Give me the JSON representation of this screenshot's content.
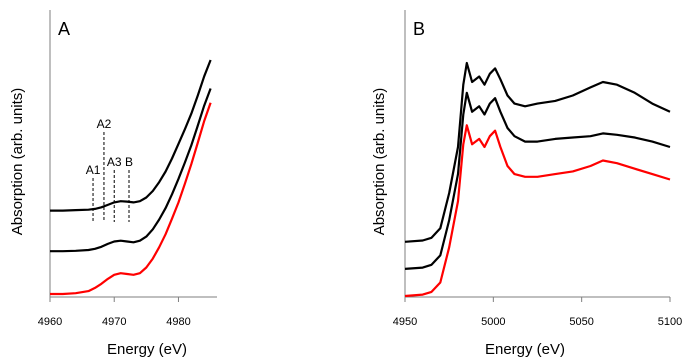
{
  "chart_data": [
    {
      "type": "line",
      "panel_label": "A",
      "xlabel": "Energy (eV)",
      "ylabel": "Absorption (arb. units)",
      "xlim": [
        4960,
        4986
      ],
      "xticks": [
        4960,
        4970,
        4980
      ],
      "grid": false,
      "y_ticks_shown": false,
      "stacked_offset": true,
      "series": [
        {
          "color": "#000000",
          "x": [
            4960,
            4962,
            4964,
            4966,
            4967,
            4968,
            4969,
            4970,
            4971,
            4972,
            4973,
            4974,
            4975,
            4976,
            4977,
            4978,
            4979,
            4980,
            4981,
            4982,
            4983,
            4984,
            4985
          ],
          "y": [
            2.1,
            2.1,
            2.11,
            2.12,
            2.14,
            2.18,
            2.24,
            2.3,
            2.33,
            2.32,
            2.3,
            2.33,
            2.42,
            2.58,
            2.8,
            3.06,
            3.38,
            3.74,
            4.1,
            4.48,
            4.92,
            5.4,
            5.8
          ]
        },
        {
          "color": "#000000",
          "x": [
            4960,
            4962,
            4964,
            4966,
            4967,
            4968,
            4969,
            4970,
            4971,
            4972,
            4973,
            4974,
            4975,
            4976,
            4977,
            4978,
            4979,
            4980,
            4981,
            4982,
            4983,
            4984,
            4985
          ],
          "y": [
            1.1,
            1.1,
            1.11,
            1.13,
            1.16,
            1.21,
            1.28,
            1.34,
            1.36,
            1.34,
            1.32,
            1.36,
            1.46,
            1.64,
            1.88,
            2.16,
            2.5,
            2.88,
            3.28,
            3.7,
            4.18,
            4.68,
            5.1
          ]
        },
        {
          "color": "#ff0000",
          "x": [
            4960,
            4962,
            4964,
            4966,
            4967,
            4968,
            4969,
            4970,
            4971,
            4972,
            4973,
            4974,
            4975,
            4976,
            4977,
            4978,
            4979,
            4980,
            4981,
            4982,
            4983,
            4984,
            4985
          ],
          "y": [
            0.05,
            0.05,
            0.07,
            0.12,
            0.2,
            0.3,
            0.42,
            0.52,
            0.56,
            0.54,
            0.52,
            0.56,
            0.7,
            0.92,
            1.2,
            1.52,
            1.9,
            2.3,
            2.76,
            3.24,
            3.76,
            4.3,
            4.75
          ]
        }
      ],
      "annotations": [
        {
          "label": "A1",
          "x": 4966.7
        },
        {
          "label": "A2",
          "x": 4968.4
        },
        {
          "label": "A3",
          "x": 4970.0
        },
        {
          "label": "B",
          "x": 4972.3
        }
      ]
    },
    {
      "type": "line",
      "panel_label": "B",
      "xlabel": "Energy (eV)",
      "ylabel": "Absorption (arb. units)",
      "xlim": [
        4950,
        5100
      ],
      "xticks": [
        4950,
        5000,
        5050,
        5100
      ],
      "grid": false,
      "y_ticks_shown": false,
      "stacked_offset": true,
      "series": [
        {
          "color": "#000000",
          "x": [
            4950,
            4960,
            4965,
            4970,
            4975,
            4980,
            4983,
            4985,
            4988,
            4992,
            4995,
            4998,
            5001,
            5004,
            5008,
            5012,
            5018,
            5025,
            5035,
            5045,
            5055,
            5062,
            5070,
            5080,
            5090,
            5100
          ],
          "y": [
            2.0,
            2.05,
            2.15,
            2.5,
            3.8,
            5.5,
            7.8,
            8.6,
            7.9,
            8.1,
            7.8,
            8.2,
            8.4,
            8.0,
            7.4,
            7.1,
            7.0,
            7.1,
            7.2,
            7.4,
            7.7,
            7.9,
            7.8,
            7.5,
            7.1,
            6.8
          ]
        },
        {
          "color": "#000000",
          "x": [
            4950,
            4960,
            4965,
            4970,
            4975,
            4980,
            4983,
            4985,
            4988,
            4992,
            4995,
            4998,
            5001,
            5004,
            5008,
            5012,
            5018,
            5025,
            5035,
            5045,
            5055,
            5062,
            5070,
            5080,
            5090,
            5100
          ],
          "y": [
            1.0,
            1.05,
            1.15,
            1.5,
            2.8,
            4.5,
            6.7,
            7.5,
            6.8,
            7.0,
            6.7,
            7.1,
            7.3,
            6.8,
            6.2,
            5.9,
            5.7,
            5.7,
            5.8,
            5.85,
            5.9,
            6.0,
            5.95,
            5.85,
            5.7,
            5.5
          ]
        },
        {
          "color": "#ff0000",
          "x": [
            4950,
            4960,
            4965,
            4970,
            4975,
            4980,
            4983,
            4985,
            4988,
            4992,
            4995,
            4998,
            5001,
            5004,
            5008,
            5012,
            5018,
            5025,
            5035,
            5045,
            5055,
            5062,
            5070,
            5080,
            5090,
            5100
          ],
          "y": [
            0.0,
            0.05,
            0.15,
            0.5,
            1.8,
            3.5,
            5.6,
            6.3,
            5.6,
            5.8,
            5.5,
            5.9,
            6.1,
            5.5,
            4.8,
            4.5,
            4.4,
            4.4,
            4.5,
            4.6,
            4.8,
            5.0,
            4.9,
            4.7,
            4.5,
            4.3
          ]
        }
      ]
    }
  ]
}
